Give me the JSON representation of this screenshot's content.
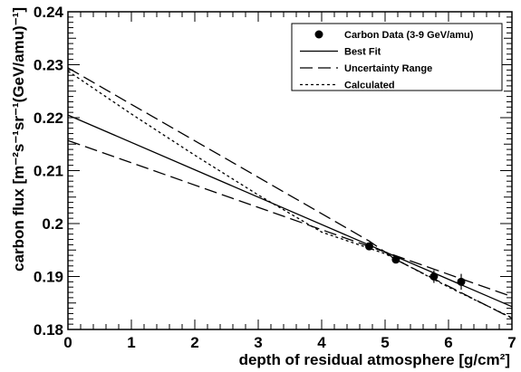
{
  "chart_data": {
    "type": "scatter",
    "xlabel": "depth of residual atmosphere [g/cm²]",
    "ylabel": "carbon flux [m⁻²s⁻¹sr⁻¹(GeV/amu)⁻¹]",
    "xlim": [
      0,
      7
    ],
    "ylim": [
      0.18,
      0.24
    ],
    "x_ticks": [
      "0",
      "1",
      "2",
      "3",
      "4",
      "5",
      "6",
      "7"
    ],
    "y_ticks": [
      "0.18",
      "0.19",
      "0.2",
      "0.21",
      "0.22",
      "0.23",
      "0.24"
    ],
    "grid": false,
    "legend_position": "top-right",
    "legend": [
      {
        "label": "Carbon Data (3-9 GeV/amu)",
        "style": "marker"
      },
      {
        "label": "Best Fit",
        "style": "solid"
      },
      {
        "label": "Uncertainty Range",
        "style": "long-dash"
      },
      {
        "label": "Calculated",
        "style": "dotted"
      }
    ],
    "points": [
      {
        "x": 4.75,
        "y": 0.1957,
        "err": 0.0006
      },
      {
        "x": 5.17,
        "y": 0.1932,
        "err": 0.0007
      },
      {
        "x": 5.77,
        "y": 0.19,
        "err": 0.0012
      },
      {
        "x": 6.2,
        "y": 0.189,
        "err": 0.0015
      }
    ],
    "lines": [
      {
        "name": "Best Fit",
        "style": "solid",
        "x": [
          0,
          7
        ],
        "y": [
          0.2205,
          0.1843
        ]
      },
      {
        "name": "Uncertainty Range",
        "style": "long-dash",
        "x": [
          0,
          7
        ],
        "y": [
          0.2157,
          0.1862
        ]
      },
      {
        "name": "Uncertainty Range",
        "style": "long-dash",
        "x": [
          0,
          4.75,
          5.17,
          7
        ],
        "y": [
          0.2294,
          0.1967,
          0.1932,
          0.1821
        ]
      },
      {
        "name": "Calculated",
        "style": "dotted",
        "x": [
          0,
          1,
          2,
          3,
          4,
          5,
          6,
          7
        ],
        "y": [
          0.2288,
          0.2207,
          0.2129,
          0.2054,
          0.1984,
          0.1943,
          0.188,
          0.1822
        ]
      }
    ]
  }
}
